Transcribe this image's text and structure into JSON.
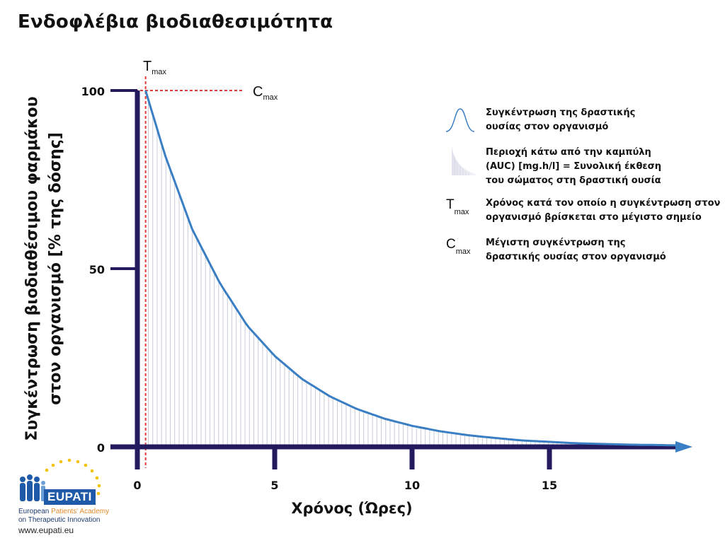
{
  "title": "Ενδοφλέβια βιοδιαθεσιμότητα",
  "chart_data": {
    "type": "area",
    "title": "Ενδοφλέβια βιοδιαθεσιμότητα",
    "xlabel": "Χρόνος (Ώρες)",
    "ylabel_line1": "Συγκέντρωση βιοδιαθέσιμου φαρμάκου",
    "ylabel_line2": "στον οργανισμό [% της δόσης]",
    "xlim": [
      0,
      20
    ],
    "ylim": [
      0,
      100
    ],
    "x_ticks": [
      0,
      5,
      10,
      15
    ],
    "y_ticks": [
      0,
      50,
      100
    ],
    "series": [
      {
        "x": [
          0.3,
          1,
          2,
          3,
          4,
          5,
          6,
          7,
          8,
          9,
          10,
          11,
          12,
          13,
          14,
          15,
          16,
          17,
          18,
          19,
          19.7
        ],
        "y": [
          100,
          82,
          61,
          46,
          34,
          25.5,
          19,
          14.2,
          10.6,
          7.9,
          5.9,
          4.4,
          3.3,
          2.5,
          1.8,
          1.4,
          1.0,
          0.8,
          0.6,
          0.5,
          0.4
        ]
      }
    ],
    "tmax_x": 0.3,
    "cmax_y": 100,
    "annotations": {
      "tmax": {
        "main": "T",
        "sub": "max"
      },
      "cmax": {
        "main": "C",
        "sub": "max"
      }
    },
    "colors": {
      "curve": "#3a7fc4",
      "axis": "#221a5c",
      "fill_lines": "#c9ccd8",
      "guide": "#e03a3a"
    }
  },
  "legend": [
    {
      "icon": "peak-curve-icon",
      "text_lines": [
        "Συγκέντρωση της δραστικής",
        "ουσίας στον οργανισμό"
      ]
    },
    {
      "icon": "auc-area-icon",
      "text_lines": [
        "Περιοχή κάτω από την καμπύλη",
        "(AUC) [mg.h/l] = Συνολική έκθεση",
        "του σώματος στη δραστική ουσία"
      ]
    },
    {
      "symbol": "T",
      "sub": "max",
      "text_lines": [
        "Χρόνος κατά τον οποίο η συγκέντρωση στον",
        "οργανισμό βρίσκεται στο μέγιστο σημείο"
      ]
    },
    {
      "symbol": "C",
      "sub": "max",
      "text_lines": [
        "Μέγιστη συγκέντρωση της",
        "δραστικής ουσίας στον οργανισμό"
      ]
    }
  ],
  "logo": {
    "brand": "EUPATI",
    "line1_a": "European ",
    "line1_b": "Patients' Academy",
    "line2": "on Therapeutic Innovation",
    "url": "www.eupati.eu"
  }
}
